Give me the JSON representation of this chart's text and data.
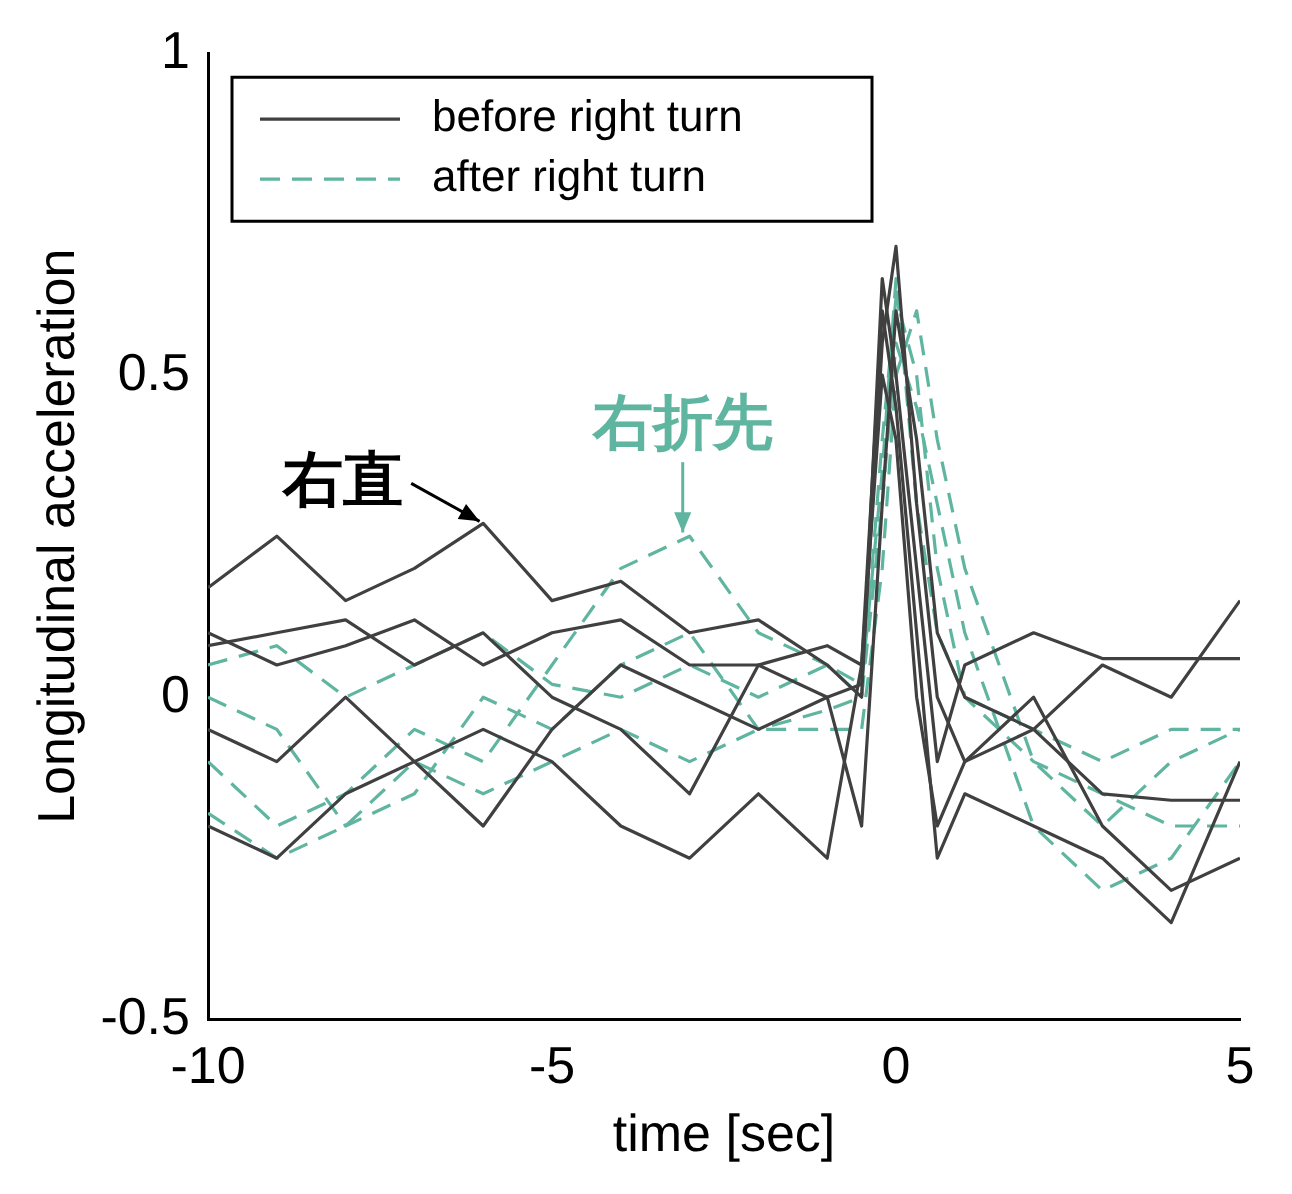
{
  "chart_data": {
    "type": "line",
    "xlabel": "time [sec]",
    "ylabel": "Longitudinal acceleration",
    "x": [
      -10,
      -9,
      -8,
      -7,
      -6,
      -5,
      -4,
      -3,
      -2,
      -1,
      -0.5,
      -0.2,
      0,
      0.3,
      0.6,
      1,
      2,
      3,
      4,
      5
    ],
    "xlim": [
      -10,
      5
    ],
    "xticks": [
      -10,
      -5,
      0,
      5
    ],
    "ylim": [
      -0.5,
      1
    ],
    "yticks": [
      -0.5,
      0,
      0.5,
      1
    ],
    "legend": "top left",
    "marker": "none",
    "grid": false,
    "series": [
      {
        "name": "before right turn",
        "color": "#404040",
        "line_style": "solid",
        "values": [
          0.17,
          0.25,
          0.15,
          0.2,
          0.27,
          0.15,
          0.18,
          0.1,
          0.12,
          0.05,
          0.0,
          0.65,
          0.5,
          0.2,
          -0.1,
          0.05,
          0.1,
          0.06,
          0.06,
          0.06
        ]
      },
      {
        "color": "#404040",
        "line_style": "solid",
        "values": [
          0.08,
          0.1,
          0.12,
          0.05,
          0.1,
          0.0,
          -0.05,
          -0.15,
          0.05,
          0.0,
          0.02,
          0.55,
          0.7,
          0.3,
          0.0,
          -0.1,
          -0.05,
          -0.15,
          -0.16,
          -0.16
        ]
      },
      {
        "color": "#404040",
        "line_style": "solid",
        "values": [
          -0.05,
          -0.1,
          0.0,
          -0.1,
          -0.05,
          -0.1,
          -0.2,
          -0.25,
          -0.15,
          -0.25,
          0.05,
          0.6,
          0.45,
          0.1,
          -0.25,
          -0.15,
          -0.2,
          -0.25,
          -0.35,
          -0.1
        ]
      },
      {
        "color": "#404040",
        "line_style": "solid",
        "values": [
          -0.2,
          -0.25,
          -0.15,
          -0.1,
          -0.2,
          -0.05,
          0.05,
          0.0,
          -0.05,
          0.0,
          -0.2,
          0.3,
          0.6,
          0.4,
          0.1,
          0.0,
          -0.05,
          0.05,
          0.0,
          0.15
        ]
      },
      {
        "color": "#404040",
        "line_style": "solid",
        "values": [
          0.1,
          0.05,
          0.08,
          0.12,
          0.05,
          0.1,
          0.12,
          0.05,
          0.05,
          0.08,
          0.05,
          0.5,
          0.4,
          0.0,
          -0.2,
          -0.1,
          0.0,
          -0.2,
          -0.3,
          -0.25
        ]
      },
      {
        "name": "after right turn",
        "color": "#5fb5a0",
        "line_style": "dashed",
        "values": [
          -0.1,
          -0.2,
          -0.15,
          -0.05,
          -0.1,
          0.05,
          0.2,
          0.25,
          0.1,
          0.05,
          0.0,
          0.4,
          0.62,
          0.5,
          0.2,
          0.0,
          -0.1,
          -0.15,
          -0.2,
          -0.2
        ]
      },
      {
        "color": "#5fb5a0",
        "line_style": "dashed",
        "values": [
          0.0,
          -0.05,
          -0.2,
          -0.15,
          0.0,
          -0.05,
          0.05,
          0.1,
          -0.05,
          -0.02,
          0.0,
          0.3,
          0.55,
          0.45,
          0.3,
          0.1,
          -0.2,
          -0.3,
          -0.25,
          -0.1
        ]
      },
      {
        "color": "#5fb5a0",
        "line_style": "dashed",
        "values": [
          -0.18,
          -0.25,
          -0.2,
          -0.1,
          -0.15,
          -0.1,
          -0.05,
          -0.1,
          -0.05,
          -0.05,
          -0.05,
          0.2,
          0.5,
          0.6,
          0.4,
          0.2,
          -0.1,
          -0.2,
          -0.1,
          -0.05
        ]
      },
      {
        "color": "#5fb5a0",
        "line_style": "dashed",
        "values": [
          0.05,
          0.08,
          0.0,
          0.05,
          0.1,
          0.02,
          0.0,
          0.05,
          0.0,
          0.05,
          0.02,
          0.35,
          0.65,
          0.3,
          0.1,
          0.0,
          -0.05,
          -0.1,
          -0.05,
          -0.05
        ]
      }
    ],
    "annotations": [
      {
        "text": "右直",
        "x": -6,
        "y": 0.27
      },
      {
        "text": "右折先",
        "x": -3.1,
        "y": 0.25
      }
    ]
  }
}
